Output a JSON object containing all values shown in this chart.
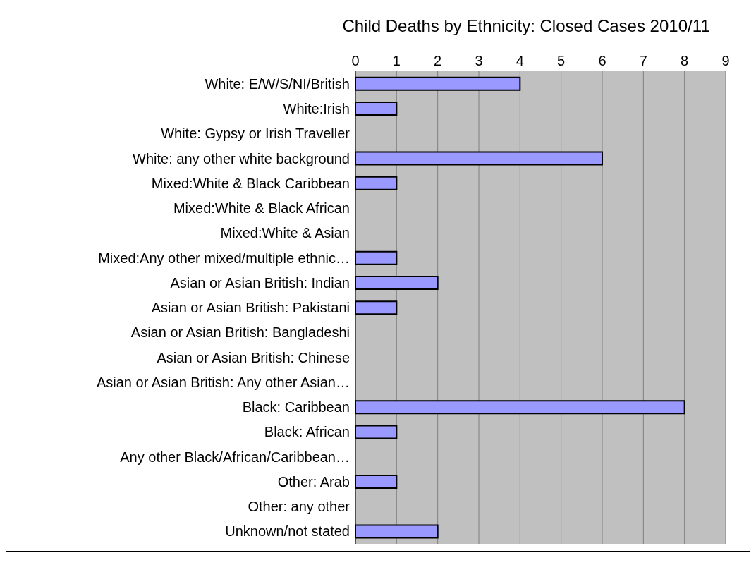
{
  "chart_data": {
    "type": "bar",
    "orientation": "horizontal",
    "title": "Child Deaths by Ethnicity: Closed Cases 2010/11",
    "categories": [
      "White: E/W/S/NI/British",
      "White:Irish",
      "White: Gypsy or Irish Traveller",
      "White: any other white background",
      "Mixed:White & Black Caribbean",
      "Mixed:White & Black African",
      "Mixed:White & Asian",
      "Mixed:Any other mixed/multiple ethnic…",
      "Asian or Asian British: Indian",
      "Asian or Asian British: Pakistani",
      "Asian or Asian British: Bangladeshi",
      "Asian or Asian British: Chinese",
      "Asian or Asian British: Any other Asian…",
      "Black: Caribbean",
      "Black: African",
      "Any other Black/African/Caribbean…",
      "Other: Arab",
      "Other: any other",
      "Unknown/not stated"
    ],
    "values": [
      4,
      1,
      0,
      6,
      1,
      0,
      0,
      1,
      2,
      1,
      0,
      0,
      0,
      8,
      1,
      0,
      1,
      0,
      2
    ],
    "color": "#9999ff",
    "xlim": [
      0,
      9
    ],
    "xticks": [
      0,
      1,
      2,
      3,
      4,
      5,
      6,
      7,
      8,
      9
    ],
    "grid": "x"
  }
}
